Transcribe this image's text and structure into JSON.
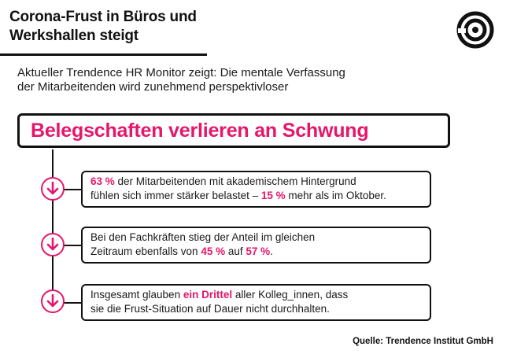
{
  "header": {
    "title_line1": "Corona-Frust in Büros und",
    "title_line2": "Werkshallen steigt",
    "subtitle_line1": "Aktueller Trendence HR Monitor zeigt: Die mentale Verfassung",
    "subtitle_line2": "der Mitarbeitenden wird zunehmend perspektivloser"
  },
  "headline": "Belegschaften verlieren an Schwung",
  "colors": {
    "accent": "#e6166b",
    "ink": "#111111"
  },
  "icons": {
    "logo": "concentric-spiral-logo",
    "arrow": "arrow-down-icon"
  },
  "facts": [
    {
      "l1_hl1": "63 %",
      "l1_t1": " der Mitarbeitenden mit akademischem Hintergrund",
      "l2_t1": "fühlen sich immer stärker belastet – ",
      "l2_hl1": "15 %",
      "l2_t2": " mehr als im Oktober."
    },
    {
      "l1_t1": "Bei den Fachkräften stieg der Anteil im gleichen",
      "l2_t1": "Zeitraum ebenfalls von ",
      "l2_hl1": "45 %",
      "l2_t2": " auf ",
      "l2_hl2": "57 %",
      "l2_t3": "."
    },
    {
      "l1_t1": "Insgesamt glauben ",
      "l1_hl1": "ein Drittel",
      "l1_t2": " aller Kolleg_innen, dass",
      "l2_t1": "sie die Frust-Situation auf Dauer nicht durchhalten."
    }
  ],
  "source": "Quelle: Trendence Institut GmbH"
}
